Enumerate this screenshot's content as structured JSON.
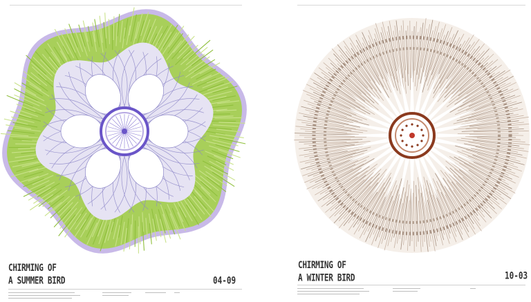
{
  "posters": [
    {
      "title_line1": "CHIRMING OF",
      "title_line2": "A SUMMER BIRD",
      "code": "04-09",
      "palette": {
        "outer": "#a8cf5a",
        "fringe": "#9b7fd6",
        "inner": "#e6e3f3",
        "lines": "#8c86c8",
        "core": "#6a55c8"
      }
    },
    {
      "title_line1": "CHIRMING OF",
      "title_line2": "A WINTER BIRD",
      "code": "10-03",
      "palette": {
        "outer": "#b8a08e",
        "fringe": "#8a6f5c",
        "inner": "#d9c9bb",
        "rays": "#ffffff",
        "core": "#8b3a1e"
      }
    }
  ]
}
